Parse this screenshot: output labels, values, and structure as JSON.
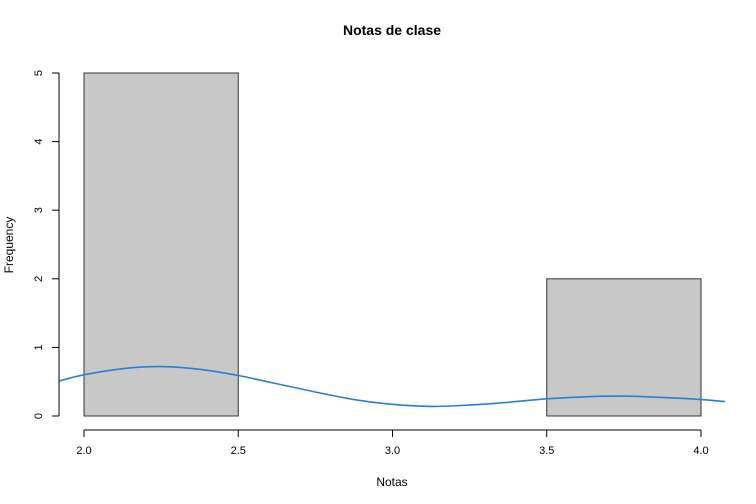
{
  "chart_data": {
    "type": "bar",
    "title": "Notas de clase",
    "xlabel": "Notas",
    "ylabel": "Frequency",
    "bins": [
      {
        "from": 2.0,
        "to": 2.5,
        "count": 5
      },
      {
        "from": 2.5,
        "to": 3.0,
        "count": 0
      },
      {
        "from": 3.0,
        "to": 3.5,
        "count": 0
      },
      {
        "from": 3.5,
        "to": 4.0,
        "count": 2
      }
    ],
    "xlim": [
      2.0,
      4.0
    ],
    "ylim": [
      0,
      5
    ],
    "x_ticks": [
      "2.0",
      "2.5",
      "3.0",
      "3.5",
      "4.0"
    ],
    "y_ticks": [
      "0",
      "1",
      "2",
      "3",
      "4",
      "5"
    ],
    "density_curve": {
      "color": "#2a7fd4",
      "points": [
        {
          "x": 1.9,
          "y": 0.51
        },
        {
          "x": 2.0,
          "y": 0.6
        },
        {
          "x": 2.125,
          "y": 0.69
        },
        {
          "x": 2.25,
          "y": 0.72
        },
        {
          "x": 2.375,
          "y": 0.68
        },
        {
          "x": 2.5,
          "y": 0.59
        },
        {
          "x": 2.625,
          "y": 0.47
        },
        {
          "x": 2.75,
          "y": 0.35
        },
        {
          "x": 2.875,
          "y": 0.24
        },
        {
          "x": 3.0,
          "y": 0.17
        },
        {
          "x": 3.125,
          "y": 0.14
        },
        {
          "x": 3.25,
          "y": 0.16
        },
        {
          "x": 3.375,
          "y": 0.2
        },
        {
          "x": 3.5,
          "y": 0.25
        },
        {
          "x": 3.625,
          "y": 0.28
        },
        {
          "x": 3.75,
          "y": 0.29
        },
        {
          "x": 3.875,
          "y": 0.27
        },
        {
          "x": 4.0,
          "y": 0.24
        },
        {
          "x": 4.08,
          "y": 0.21
        }
      ]
    },
    "grid": false,
    "legend": "none",
    "bar_color": "#c8c8c8"
  }
}
